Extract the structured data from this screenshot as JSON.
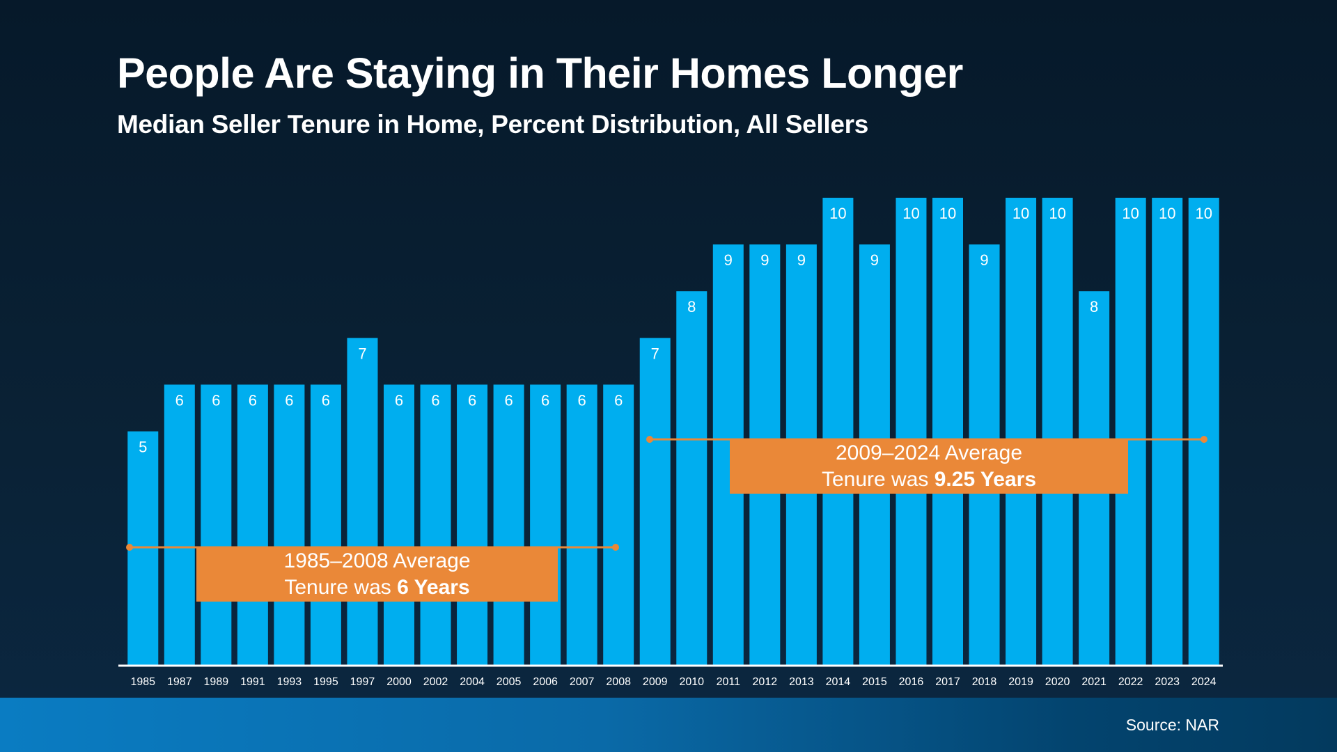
{
  "title": "People Are Staying in Their Homes Longer",
  "subtitle": "Median Seller Tenure in Home, Percent Distribution, All Sellers",
  "source": "Source: NAR",
  "colors": {
    "bar": "#00aeef",
    "annotation": "#ea8838",
    "background": "#071c2d",
    "text": "#ffffff"
  },
  "annotations": [
    {
      "line1": "1985–2008 Average",
      "line2_prefix": "Tenure was ",
      "line2_bold": "6 Years"
    },
    {
      "line1": "2009–2024 Average",
      "line2_prefix": "Tenure was ",
      "line2_bold": "9.25 Years"
    }
  ],
  "chart_data": {
    "type": "bar",
    "title": "People Are Staying in Their Homes Longer",
    "subtitle": "Median Seller Tenure in Home, Percent Distribution, All Sellers",
    "xlabel": "",
    "ylabel": "",
    "ylim": [
      0,
      10
    ],
    "grid": false,
    "data_labels": true,
    "categories": [
      "1985",
      "1987",
      "1989",
      "1991",
      "1993",
      "1995",
      "1997",
      "2000",
      "2002",
      "2004",
      "2005",
      "2006",
      "2007",
      "2008",
      "2009",
      "2010",
      "2011",
      "2012",
      "2013",
      "2014",
      "2015",
      "2016",
      "2017",
      "2018",
      "2019",
      "2020",
      "2021",
      "2022",
      "2023",
      "2024"
    ],
    "values": [
      5,
      6,
      6,
      6,
      6,
      6,
      7,
      6,
      6,
      6,
      6,
      6,
      6,
      6,
      7,
      8,
      9,
      9,
      9,
      10,
      9,
      10,
      10,
      9,
      10,
      10,
      8,
      10,
      10,
      10
    ]
  }
}
